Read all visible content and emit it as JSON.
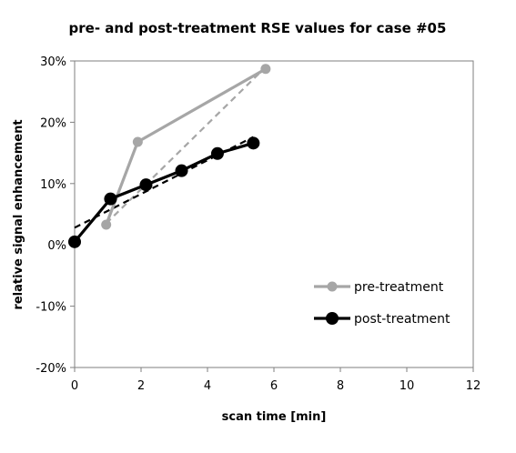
{
  "chart_data": {
    "type": "line",
    "title": "pre- and post-treatment RSE values for case #05",
    "xlabel": "scan time [min]",
    "ylabel": "relative signal enhancement",
    "xlim": [
      0,
      12
    ],
    "ylim": [
      -20,
      30
    ],
    "x_ticks": [
      "0",
      "2",
      "4",
      "6",
      "8",
      "10",
      "12"
    ],
    "y_ticks": [
      "-20%",
      "-10%",
      "0%",
      "10%",
      "20%",
      "30%"
    ],
    "grid": false,
    "legend_position": "bottom-right",
    "series": [
      {
        "name": "pre-treatment",
        "color": "#a6a6a6",
        "x": [
          0.95,
          1.9,
          5.75
        ],
        "y": [
          3.3,
          16.8,
          28.7
        ],
        "trendline": {
          "x": [
            0.95,
            5.75
          ],
          "y": [
            3.5,
            29.0
          ],
          "style": "dashed"
        }
      },
      {
        "name": "post-treatment",
        "color": "#000000",
        "x": [
          0.0,
          1.08,
          2.15,
          3.22,
          4.3,
          5.38
        ],
        "y": [
          0.5,
          7.5,
          9.8,
          12.1,
          14.9,
          16.6
        ],
        "trendline": {
          "x": [
            0.0,
            5.38
          ],
          "y": [
            2.8,
            17.6
          ],
          "style": "dashed"
        }
      }
    ]
  }
}
